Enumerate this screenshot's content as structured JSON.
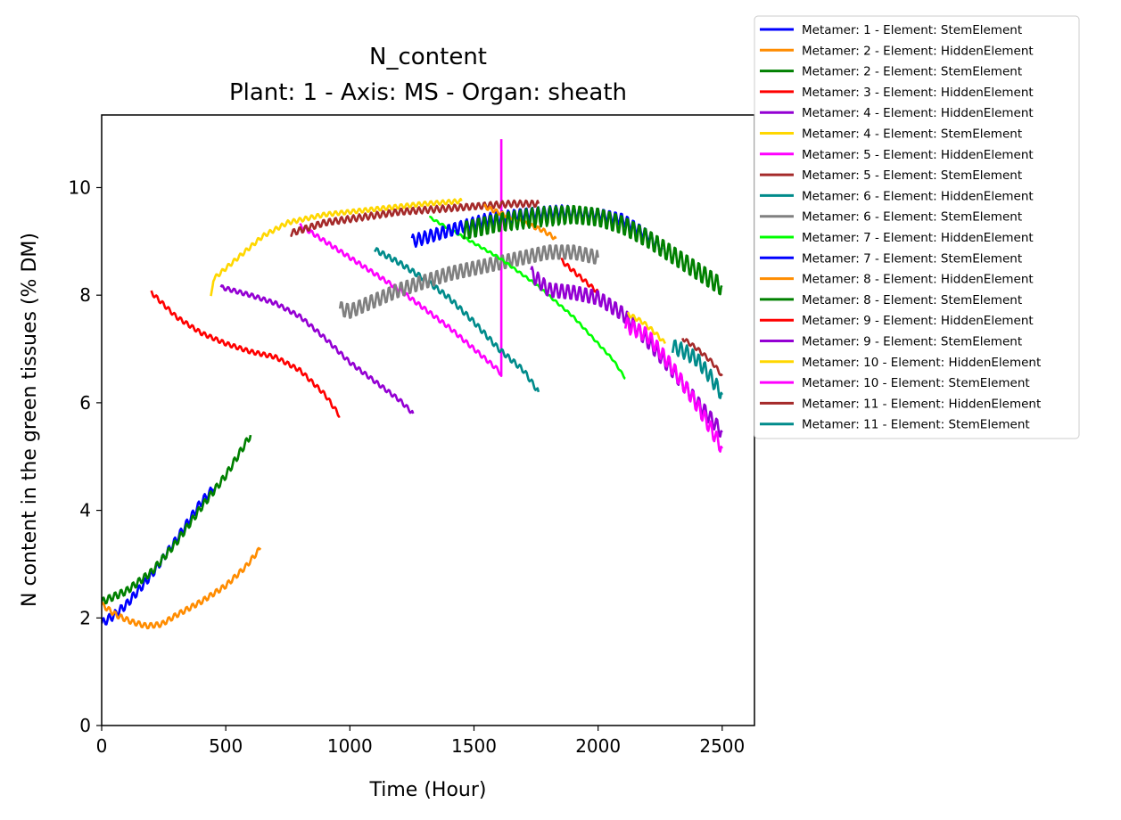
{
  "chart_data": {
    "type": "line",
    "title": "N_content",
    "subtitle": "Plant: 1 - Axis: MS - Organ: sheath",
    "xlabel": "Time (Hour)",
    "ylabel": "N content in the green tissues (% DM)",
    "xlim": [
      0,
      2630
    ],
    "ylim": [
      0,
      11.35
    ],
    "xticks": [
      0,
      500,
      1000,
      1500,
      2000,
      2500
    ],
    "yticks": [
      0,
      2,
      4,
      6,
      8,
      10
    ],
    "grid": false,
    "legend_position": "outside-top-right",
    "series": [
      {
        "name": "Metamer: 1 - Element: StemElement",
        "color": "#0000ff",
        "x": [
          0,
          50,
          100,
          200,
          300,
          400,
          450
        ],
        "y": [
          1.9,
          2.05,
          2.25,
          2.8,
          3.45,
          4.15,
          4.4
        ],
        "wave": 0.08
      },
      {
        "name": "Metamer: 2 - Element: HiddenElement",
        "color": "#ff8c00",
        "x": [
          0,
          60,
          120,
          180,
          240,
          300,
          400,
          500,
          580,
          640
        ],
        "y": [
          2.25,
          2.05,
          1.93,
          1.85,
          1.88,
          2.05,
          2.3,
          2.6,
          2.95,
          3.3
        ],
        "wave": 0.05
      },
      {
        "name": "Metamer: 2 - Element: StemElement",
        "color": "#008000",
        "x": [
          0,
          100,
          200,
          300,
          400,
          500,
          600
        ],
        "y": [
          2.3,
          2.5,
          2.85,
          3.4,
          4.05,
          4.65,
          5.4
        ],
        "wave": 0.07
      },
      {
        "name": "Metamer: 3 - Element: HiddenElement",
        "color": "#ff0000",
        "x": [
          200,
          300,
          400,
          500,
          600,
          700,
          800,
          900,
          960
        ],
        "y": [
          8.05,
          7.6,
          7.3,
          7.1,
          6.95,
          6.85,
          6.6,
          6.15,
          5.75
        ],
        "wave": 0.04
      },
      {
        "name": "Metamer: 4 - Element: HiddenElement",
        "color": "#9400d3",
        "x": [
          480,
          600,
          700,
          800,
          900,
          1000,
          1100,
          1200,
          1255
        ],
        "y": [
          8.15,
          8.0,
          7.85,
          7.6,
          7.2,
          6.75,
          6.4,
          6.05,
          5.8
        ],
        "wave": 0.04
      },
      {
        "name": "Metamer: 4 - Element: StemElement",
        "color": "#ffd700",
        "x": [
          440,
          450,
          550,
          650,
          750,
          900,
          1100,
          1300,
          1450
        ],
        "y": [
          7.95,
          8.3,
          8.7,
          9.1,
          9.35,
          9.5,
          9.6,
          9.7,
          9.75
        ],
        "wave": 0.04
      },
      {
        "name": "Metamer: 5 - Element: HiddenElement",
        "color": "#ff00ff",
        "x": [
          800,
          900,
          1000,
          1100,
          1200,
          1300,
          1400,
          1500,
          1600,
          1610,
          1610
        ],
        "y": [
          9.3,
          9.0,
          8.7,
          8.4,
          8.1,
          7.75,
          7.4,
          7.0,
          6.6,
          6.5,
          10.9
        ],
        "wave": 0.04
      },
      {
        "name": "Metamer: 5 - Element: StemElement",
        "color": "#a52a2a",
        "x": [
          760,
          900,
          1050,
          1200,
          1350,
          1500,
          1650,
          1760
        ],
        "y": [
          9.15,
          9.35,
          9.45,
          9.55,
          9.6,
          9.65,
          9.7,
          9.7
        ],
        "wave": 0.06
      },
      {
        "name": "Metamer: 6 - Element: HiddenElement",
        "color": "#008b8b",
        "x": [
          1100,
          1200,
          1300,
          1400,
          1500,
          1600,
          1700,
          1760
        ],
        "y": [
          8.85,
          8.6,
          8.3,
          7.95,
          7.5,
          7.0,
          6.6,
          6.2
        ],
        "wave": 0.05
      },
      {
        "name": "Metamer: 6 - Element: StemElement",
        "color": "#808080",
        "x": [
          960,
          1000,
          1100,
          1200,
          1300,
          1400,
          1500,
          1600,
          1700,
          1800,
          1900,
          2000
        ],
        "y": [
          7.75,
          7.7,
          7.9,
          8.1,
          8.25,
          8.4,
          8.5,
          8.6,
          8.7,
          8.8,
          8.8,
          8.7
        ],
        "wave": 0.14
      },
      {
        "name": "Metamer: 7 - Element: HiddenElement",
        "color": "#00ff00",
        "x": [
          1320,
          1450,
          1600,
          1750,
          1900,
          2000,
          2060,
          2110
        ],
        "y": [
          9.45,
          9.1,
          8.7,
          8.2,
          7.6,
          7.1,
          6.8,
          6.45
        ],
        "wave": 0.02
      },
      {
        "name": "Metamer: 7 - Element: StemElement",
        "color": "#0000ff",
        "x": [
          1250,
          1400,
          1550,
          1700,
          1850,
          2000,
          2100,
          2200,
          2260
        ],
        "y": [
          9.0,
          9.2,
          9.4,
          9.5,
          9.55,
          9.5,
          9.4,
          9.1,
          8.85
        ],
        "wave": 0.12
      },
      {
        "name": "Metamer: 8 - Element: HiddenElement",
        "color": "#ff8c00",
        "x": [
          1540,
          1620,
          1700,
          1780,
          1830
        ],
        "y": [
          9.65,
          9.5,
          9.35,
          9.2,
          9.05
        ],
        "wave": 0.04
      },
      {
        "name": "Metamer: 8 - Element: StemElement",
        "color": "#008000",
        "x": [
          1460,
          1600,
          1750,
          1900,
          2000,
          2100,
          2200,
          2300,
          2400,
          2500
        ],
        "y": [
          9.2,
          9.35,
          9.45,
          9.5,
          9.45,
          9.3,
          9.05,
          8.75,
          8.45,
          8.15
        ],
        "wave": 0.18
      },
      {
        "name": "Metamer: 9 - Element: HiddenElement",
        "color": "#ff0000",
        "x": [
          1850,
          1900,
          1950,
          2000
        ],
        "y": [
          8.65,
          8.45,
          8.25,
          8.05
        ],
        "wave": 0.04
      },
      {
        "name": "Metamer: 9 - Element: StemElement",
        "color": "#9400d3",
        "x": [
          1730,
          1800,
          1900,
          2000,
          2100,
          2200,
          2300,
          2400,
          2500
        ],
        "y": [
          8.4,
          8.1,
          8.05,
          7.95,
          7.65,
          7.15,
          6.6,
          6.0,
          5.45
        ],
        "wave": 0.14
      },
      {
        "name": "Metamer: 10 - Element: HiddenElement",
        "color": "#ffd700",
        "x": [
          2120,
          2180,
          2230,
          2270
        ],
        "y": [
          7.65,
          7.5,
          7.3,
          7.1
        ],
        "wave": 0.04
      },
      {
        "name": "Metamer: 10 - Element: StemElement",
        "color": "#ff00ff",
        "x": [
          2110,
          2200,
          2300,
          2400,
          2500
        ],
        "y": [
          7.45,
          7.25,
          6.65,
          5.95,
          5.15
        ],
        "wave": 0.14
      },
      {
        "name": "Metamer: 11 - Element: HiddenElement",
        "color": "#a52a2a",
        "x": [
          2340,
          2400,
          2460,
          2500
        ],
        "y": [
          7.2,
          7.0,
          6.75,
          6.5
        ],
        "wave": 0.04
      },
      {
        "name": "Metamer: 11 - Element: StemElement",
        "color": "#008b8b",
        "x": [
          2300,
          2350,
          2400,
          2450,
          2500
        ],
        "y": [
          7.05,
          6.95,
          6.8,
          6.5,
          6.15
        ],
        "wave": 0.14
      }
    ]
  }
}
